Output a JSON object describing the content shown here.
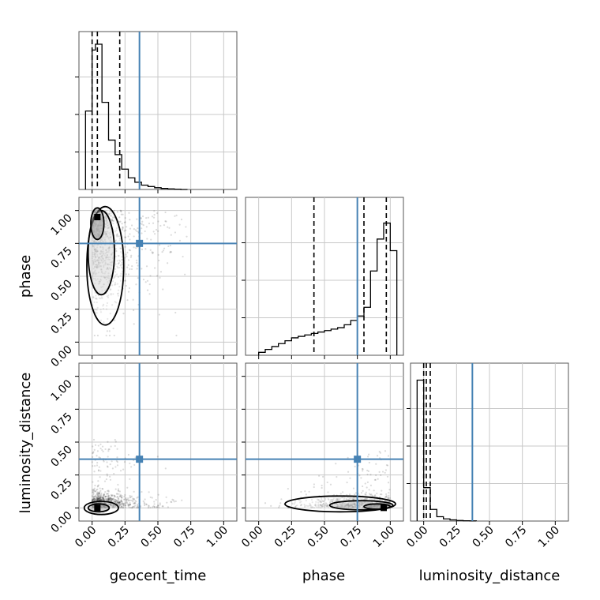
{
  "chart_data": {
    "type": "corner",
    "parameters": [
      "geocent_time",
      "phase",
      "luminosity_distance"
    ],
    "tick_labels": [
      "0.00",
      "0.25",
      "0.50",
      "0.75",
      "1.00"
    ],
    "axis_range": [
      -0.1,
      1.1
    ],
    "truth_color": "#4682b4",
    "truths": {
      "geocent_time": 0.36,
      "phase": 0.75,
      "luminosity_distance": 0.37
    },
    "grid": true,
    "marginals": [
      {
        "parameter": "geocent_time",
        "bins": [
          -0.05,
          0.0,
          0.025,
          0.075,
          0.125,
          0.175,
          0.225,
          0.275,
          0.325,
          0.375,
          0.425,
          0.475,
          0.525,
          0.575,
          0.625,
          0.675,
          0.725
        ],
        "counts": [
          0.54,
          0.96,
          1.0,
          0.6,
          0.34,
          0.24,
          0.14,
          0.08,
          0.05,
          0.03,
          0.02,
          0.012,
          0.007,
          0.004,
          0.002,
          0.0
        ],
        "quantiles": [
          0.0,
          0.04,
          0.21
        ]
      },
      {
        "parameter": "phase",
        "bins": [
          0.0,
          0.05,
          0.1,
          0.15,
          0.2,
          0.25,
          0.3,
          0.35,
          0.4,
          0.45,
          0.5,
          0.55,
          0.6,
          0.65,
          0.7,
          0.75,
          0.8,
          0.85,
          0.9,
          0.95,
          1.0,
          1.05
        ],
        "counts": [
          0.02,
          0.04,
          0.06,
          0.08,
          0.1,
          0.12,
          0.13,
          0.14,
          0.15,
          0.16,
          0.17,
          0.18,
          0.19,
          0.21,
          0.24,
          0.27,
          0.33,
          0.58,
          0.8,
          0.91,
          0.72
        ],
        "quantiles": [
          0.42,
          0.8,
          0.97
        ]
      },
      {
        "parameter": "luminosity_distance",
        "bins": [
          -0.05,
          0.0,
          0.05,
          0.1,
          0.15,
          0.2,
          0.25,
          0.3,
          0.35,
          0.4
        ],
        "counts": [
          0.97,
          0.23,
          0.08,
          0.03,
          0.015,
          0.008,
          0.004,
          0.002,
          0.001
        ],
        "quantiles": [
          0.0,
          0.02,
          0.05
        ]
      }
    ],
    "joints": [
      {
        "x_parameter": "geocent_time",
        "y_parameter": "phase"
      },
      {
        "x_parameter": "geocent_time",
        "y_parameter": "luminosity_distance"
      },
      {
        "x_parameter": "phase",
        "y_parameter": "luminosity_distance"
      }
    ]
  }
}
